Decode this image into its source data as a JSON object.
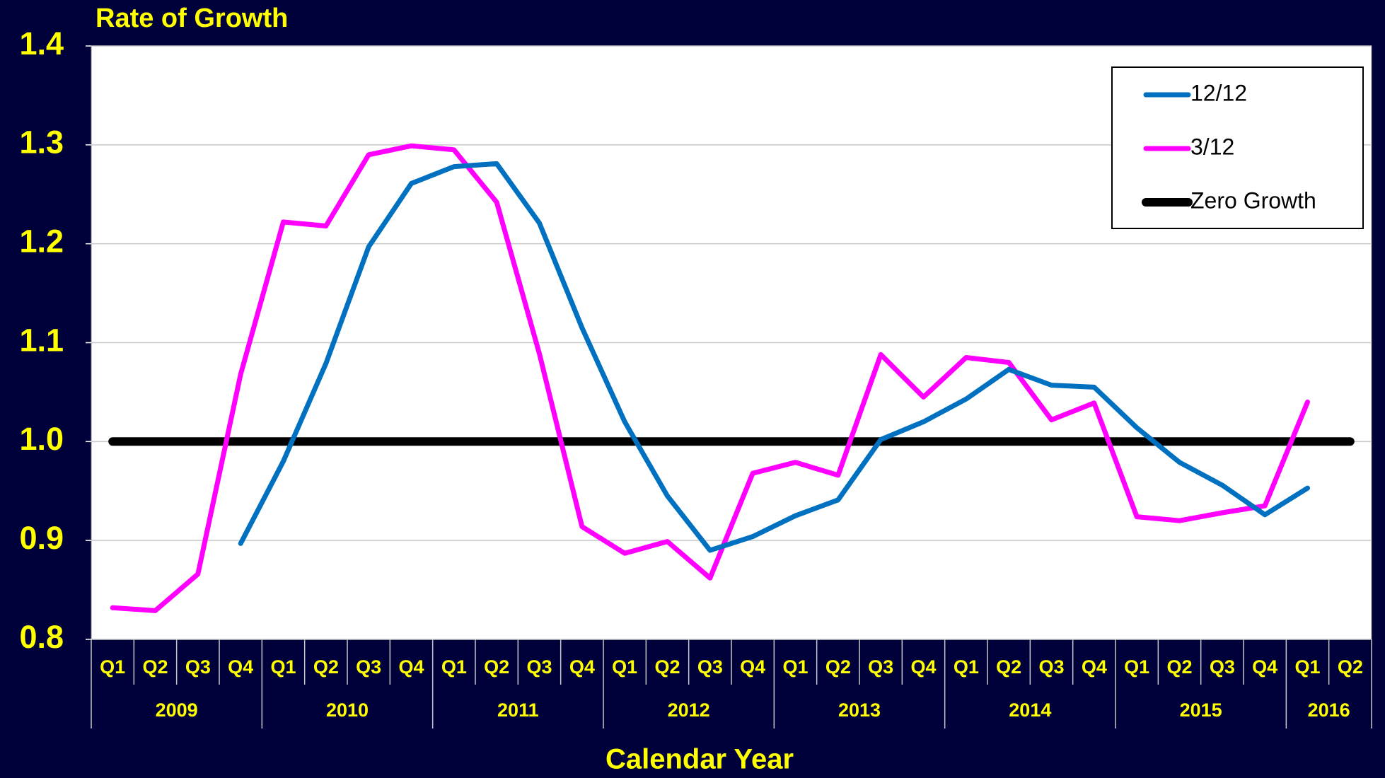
{
  "chart_data": {
    "type": "line",
    "title": "Rate of Growth",
    "xlabel": "Calendar Year",
    "categories": [
      "Q1",
      "Q2",
      "Q3",
      "Q4",
      "Q1",
      "Q2",
      "Q3",
      "Q4",
      "Q1",
      "Q2",
      "Q3",
      "Q4",
      "Q1",
      "Q2",
      "Q3",
      "Q4",
      "Q1",
      "Q2",
      "Q3",
      "Q4",
      "Q1",
      "Q2",
      "Q3",
      "Q4",
      "Q1",
      "Q2",
      "Q3",
      "Q4",
      "Q1",
      "Q2"
    ],
    "years": [
      "2009",
      "2010",
      "2011",
      "2012",
      "2013",
      "2014",
      "2015",
      "2016"
    ],
    "series": [
      {
        "name": "12/12",
        "color": "#0070c0",
        "width": 7,
        "values": [
          null,
          null,
          null,
          0.897,
          0.98,
          1.079,
          1.197,
          1.261,
          1.278,
          1.281,
          1.221,
          1.115,
          1.02,
          0.945,
          0.89,
          0.904,
          0.925,
          0.941,
          1.002,
          1.02,
          1.043,
          1.073,
          1.057,
          1.055,
          1.014,
          0.979,
          0.956,
          0.926,
          0.953,
          null
        ]
      },
      {
        "name": "3/12",
        "color": "#ff00ff",
        "width": 7,
        "values": [
          0.832,
          0.829,
          0.866,
          1.068,
          1.222,
          1.218,
          1.29,
          1.299,
          1.295,
          1.242,
          1.089,
          0.914,
          0.887,
          0.899,
          0.862,
          0.968,
          0.979,
          0.966,
          1.088,
          1.045,
          1.085,
          1.08,
          1.022,
          1.039,
          0.924,
          0.92,
          0.928,
          0.935,
          1.04,
          null
        ]
      },
      {
        "name": "Zero Growth",
        "color": "#000000",
        "width": 12,
        "values": [
          1,
          1,
          1,
          1,
          1,
          1,
          1,
          1,
          1,
          1,
          1,
          1,
          1,
          1,
          1,
          1,
          1,
          1,
          1,
          1,
          1,
          1,
          1,
          1,
          1,
          1,
          1,
          1,
          1,
          1
        ]
      }
    ],
    "ylim": [
      0.8,
      1.4
    ],
    "yticks": [
      0.8,
      0.9,
      {
        "value": 1,
        "label": "1.0"
      },
      1.1,
      1.2,
      1.3,
      1.4
    ],
    "grid": true,
    "legend": "upper right"
  }
}
